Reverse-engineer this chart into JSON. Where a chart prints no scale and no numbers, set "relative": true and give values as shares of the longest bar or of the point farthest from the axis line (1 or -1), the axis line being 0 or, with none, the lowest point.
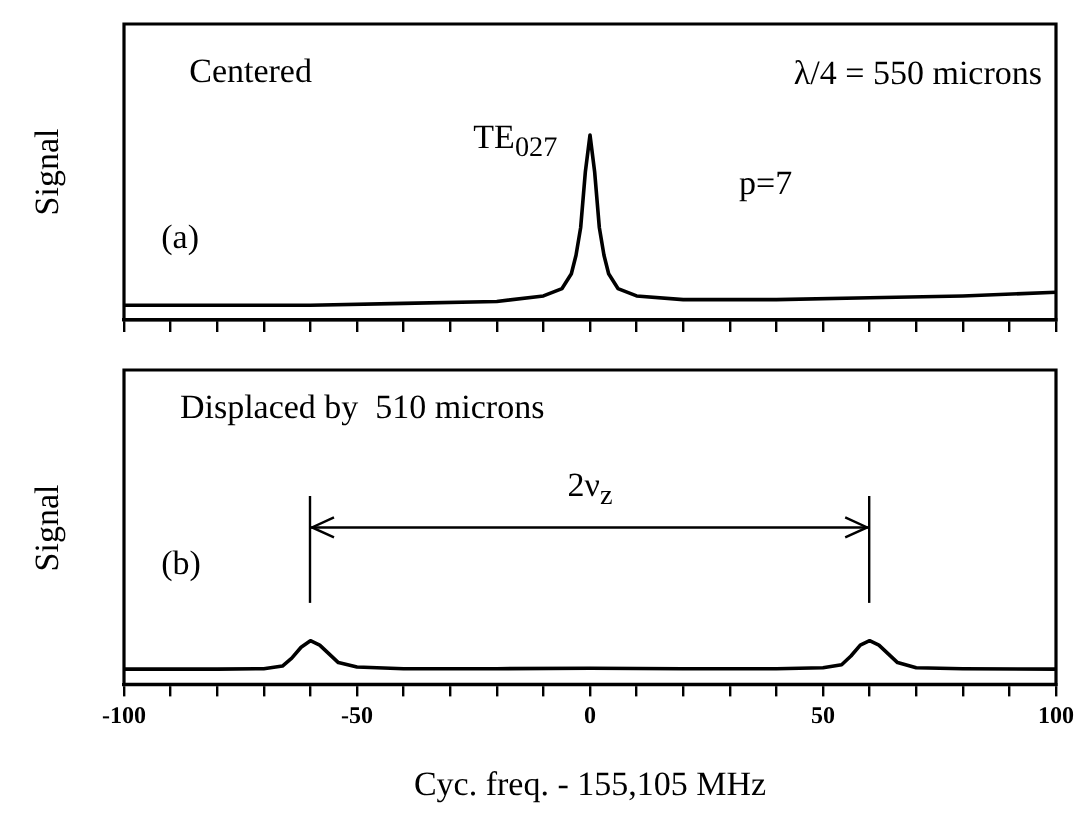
{
  "chart_data": [
    {
      "type": "line",
      "relative": true,
      "ylabel": "Signal",
      "annotations": [
        "Centered",
        "λ/4 = 550 microns",
        "TE$_{027}$",
        "p=7",
        "(a)"
      ],
      "xlim": [
        -100,
        100
      ],
      "xticks": [
        {
          "value": -100,
          "label": null
        },
        {
          "value": -90,
          "label": null
        },
        {
          "value": -80,
          "label": null
        },
        {
          "value": -70,
          "label": null
        },
        {
          "value": -60,
          "label": null
        },
        {
          "value": -50,
          "label": null
        },
        {
          "value": -40,
          "label": null
        },
        {
          "value": -30,
          "label": null
        },
        {
          "value": -20,
          "label": null
        },
        {
          "value": -10,
          "label": null
        },
        {
          "value": 0,
          "label": null
        },
        {
          "value": 10,
          "label": null
        },
        {
          "value": 20,
          "label": null
        },
        {
          "value": 30,
          "label": null
        },
        {
          "value": 40,
          "label": null
        },
        {
          "value": 50,
          "label": null
        },
        {
          "value": 60,
          "label": null
        },
        {
          "value": 70,
          "label": null
        },
        {
          "value": 80,
          "label": null
        },
        {
          "value": 90,
          "label": null
        },
        {
          "value": 100,
          "label": null
        }
      ],
      "tick_labels": false,
      "x": [
        -100,
        -80,
        -60,
        -40,
        -20,
        -10,
        -6,
        -4,
        -3,
        -2,
        -1,
        0,
        1,
        2,
        3,
        4,
        6,
        10,
        20,
        40,
        60,
        80,
        100
      ],
      "series": [
        {
          "color": "#000000",
          "values": [
            0.08,
            0.08,
            0.08,
            0.09,
            0.1,
            0.13,
            0.17,
            0.25,
            0.35,
            0.5,
            0.8,
            1,
            0.8,
            0.5,
            0.35,
            0.25,
            0.17,
            0.13,
            0.11,
            0.11,
            0.12,
            0.13,
            0.15
          ]
        }
      ]
    },
    {
      "type": "line",
      "relative": true,
      "ylabel": "Signal",
      "xlabel": "Cyc. freq. - 155,105 MHz",
      "annotations": [
        "Displaced by  510 microns",
        "2ν$_{z}$",
        "(b)"
      ],
      "xlim": [
        -100,
        100
      ],
      "xticks": [
        -100,
        {
          "value": -90,
          "label": null
        },
        {
          "value": -80,
          "label": null
        },
        {
          "value": -70,
          "label": null
        },
        {
          "value": -60,
          "label": null
        },
        -50,
        {
          "value": -40,
          "label": null
        },
        {
          "value": -30,
          "label": null
        },
        {
          "value": -20,
          "label": null
        },
        {
          "value": -10,
          "label": null
        },
        0,
        {
          "value": 10,
          "label": null
        },
        {
          "value": 20,
          "label": null
        },
        {
          "value": 30,
          "label": null
        },
        {
          "value": 40,
          "label": null
        },
        50,
        {
          "value": 60,
          "label": null
        },
        {
          "value": 70,
          "label": null
        },
        {
          "value": 80,
          "label": null
        },
        {
          "value": 90,
          "label": null
        },
        100
      ],
      "tick_labels": "x",
      "x": [
        -100,
        -80,
        -70,
        -66,
        -64,
        -62,
        -60,
        -58,
        -56,
        -54,
        -50,
        -40,
        -20,
        0,
        20,
        40,
        50,
        54,
        56,
        58,
        60,
        62,
        64,
        66,
        70,
        80,
        100
      ],
      "series": [
        {
          "color": "#000000",
          "values": [
            0.35,
            0.35,
            0.36,
            0.42,
            0.6,
            0.85,
            1,
            0.9,
            0.7,
            0.5,
            0.4,
            0.36,
            0.36,
            0.37,
            0.36,
            0.36,
            0.38,
            0.45,
            0.65,
            0.9,
            1,
            0.9,
            0.7,
            0.5,
            0.38,
            0.36,
            0.35
          ]
        }
      ]
    }
  ]
}
